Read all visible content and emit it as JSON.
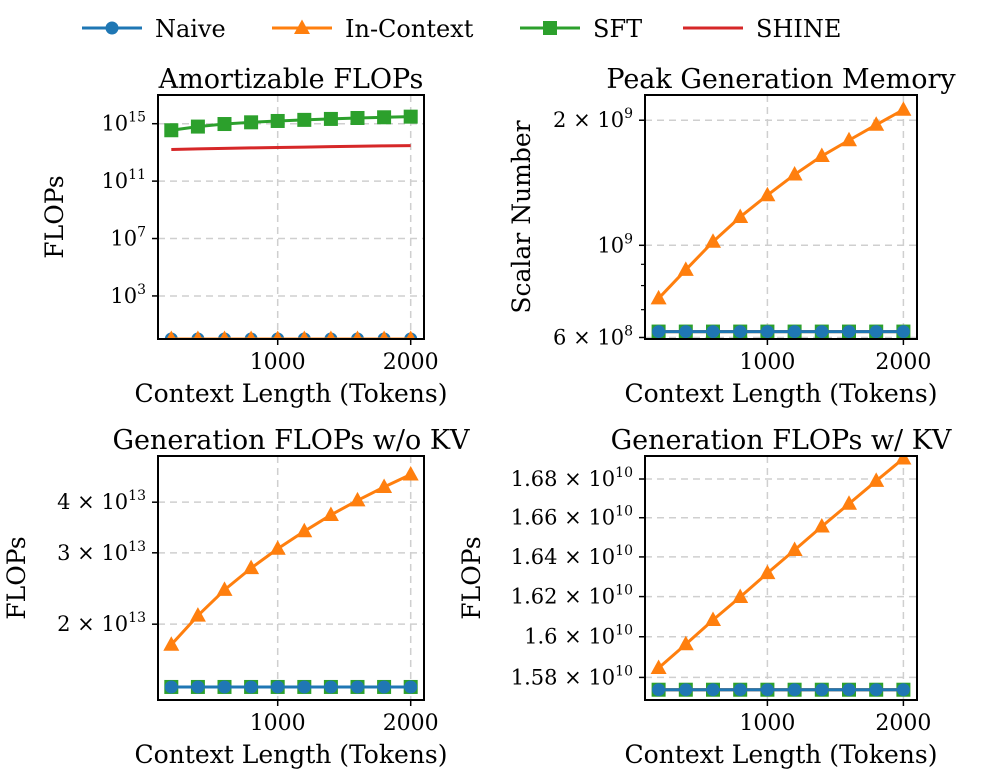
{
  "legend": {
    "position": "top-center",
    "entries": [
      {
        "name": "Naive",
        "color": "#1f77b4",
        "marker": "circle"
      },
      {
        "name": "In-Context",
        "color": "#ff7f0e",
        "marker": "triangle"
      },
      {
        "name": "SFT",
        "color": "#2ca02c",
        "marker": "square"
      },
      {
        "name": "SHINE",
        "color": "#d62728",
        "marker": "none"
      }
    ]
  },
  "chart_data": [
    {
      "type": "line",
      "title": "Amortizable FLOPs",
      "xlabel": "Context Length (Tokens)",
      "ylabel": "FLOPs",
      "yscale": "log",
      "grid": true,
      "xlim": [
        100,
        2100
      ],
      "ylim": [
        1,
        1e+17
      ],
      "x_ticks": [
        {
          "value": 1000,
          "label": "1000"
        },
        {
          "value": 2000,
          "label": "2000"
        }
      ],
      "y_ticks": [
        {
          "value": 1000.0,
          "base": "10",
          "exp": "3"
        },
        {
          "value": 10000000.0,
          "base": "10",
          "exp": "7"
        },
        {
          "value": 100000000000.0,
          "base": "10",
          "exp": "11"
        },
        {
          "value": 1000000000000000.0,
          "base": "10",
          "exp": "15"
        }
      ],
      "x": [
        200,
        400,
        600,
        800,
        1000,
        1200,
        1400,
        1600,
        1800,
        2000
      ],
      "series": [
        {
          "name": "Naive",
          "values": [
            1,
            1,
            1,
            1,
            1,
            1,
            1,
            1,
            1,
            1
          ]
        },
        {
          "name": "In-Context",
          "values": [
            1,
            1,
            1,
            1,
            1,
            1,
            1,
            1,
            1,
            1
          ]
        },
        {
          "name": "SFT",
          "values": [
            350000000000000.0,
            630000000000000.0,
            950000000000000.0,
            1250000000000000.0,
            1550000000000000.0,
            1850000000000000.0,
            2150000000000000.0,
            2500000000000000.0,
            2800000000000000.0,
            3100000000000000.0
          ]
        },
        {
          "name": "SHINE",
          "values": [
            16000000000000.0,
            17500000000000.0,
            19000000000000.0,
            20500000000000.0,
            22000000000000.0,
            23500000000000.0,
            25500000000000.0,
            27000000000000.0,
            28500000000000.0,
            30000000000000.0
          ]
        }
      ]
    },
    {
      "type": "line",
      "title": "Peak Generation Memory",
      "xlabel": "Context Length (Tokens)",
      "ylabel": "Scalar Number",
      "yscale": "log",
      "grid": true,
      "xlim": [
        100,
        2100
      ],
      "ylim": [
        595000000.0,
        2300000000.0
      ],
      "x_ticks": [
        {
          "value": 1000,
          "label": "1000"
        },
        {
          "value": 2000,
          "label": "2000"
        }
      ],
      "y_ticks": [
        {
          "value": 600000000.0,
          "mant": "6",
          "base": "10",
          "exp": "8"
        },
        {
          "value": 1000000000.0,
          "mant": "",
          "base": "10",
          "exp": "9"
        },
        {
          "value": 2000000000.0,
          "mant": "2",
          "base": "10",
          "exp": "9"
        }
      ],
      "y_minor_ticks": [
        700000000.0,
        800000000.0,
        900000000.0
      ],
      "x": [
        200,
        400,
        600,
        800,
        1000,
        1200,
        1400,
        1600,
        1800,
        2000
      ],
      "series": [
        {
          "name": "Naive",
          "values": [
            620000000.0,
            620000000.0,
            620000000.0,
            620000000.0,
            620000000.0,
            620000000.0,
            620000000.0,
            620000000.0,
            620000000.0,
            620000000.0
          ]
        },
        {
          "name": "In-Context",
          "values": [
            745000000.0,
            873000000.0,
            1020000000.0,
            1170000000.0,
            1320000000.0,
            1480000000.0,
            1640000000.0,
            1790000000.0,
            1950000000.0,
            2120000000.0
          ]
        },
        {
          "name": "SFT",
          "values": [
            620000000.0,
            620000000.0,
            620000000.0,
            620000000.0,
            620000000.0,
            620000000.0,
            620000000.0,
            620000000.0,
            620000000.0,
            620000000.0
          ]
        },
        {
          "name": "SHINE",
          "values": [
            620000000.0,
            620000000.0,
            620000000.0,
            620000000.0,
            620000000.0,
            620000000.0,
            620000000.0,
            620000000.0,
            620000000.0,
            620000000.0
          ]
        }
      ]
    },
    {
      "type": "line",
      "title": "Generation FLOPs w/o KV",
      "xlabel": "Context Length (Tokens)",
      "ylabel": "FLOPs",
      "yscale": "log",
      "grid": true,
      "xlim": [
        100,
        2100
      ],
      "ylim": [
        13000000000000.0,
        52000000000000.0
      ],
      "x_ticks": [
        {
          "value": 1000,
          "label": "1000"
        },
        {
          "value": 2000,
          "label": "2000"
        }
      ],
      "y_ticks": [
        {
          "value": 20000000000000.0,
          "mant": "2",
          "base": "10",
          "exp": "13"
        },
        {
          "value": 30000000000000.0,
          "mant": "3",
          "base": "10",
          "exp": "13"
        },
        {
          "value": 40000000000000.0,
          "mant": "4",
          "base": "10",
          "exp": "13"
        }
      ],
      "x": [
        200,
        400,
        600,
        800,
        1000,
        1200,
        1400,
        1600,
        1800,
        2000
      ],
      "series": [
        {
          "name": "Naive",
          "values": [
            14000000000000.0,
            14000000000000.0,
            14000000000000.0,
            14000000000000.0,
            14000000000000.0,
            14000000000000.0,
            14000000000000.0,
            14000000000000.0,
            14000000000000.0,
            14000000000000.0
          ]
        },
        {
          "name": "In-Context",
          "values": [
            17800000000000.0,
            21000000000000.0,
            24300000000000.0,
            27500000000000.0,
            30700000000000.0,
            33900000000000.0,
            37200000000000.0,
            40400000000000.0,
            43600000000000.0,
            46800000000000.0
          ]
        },
        {
          "name": "SFT",
          "values": [
            14000000000000.0,
            14000000000000.0,
            14000000000000.0,
            14000000000000.0,
            14000000000000.0,
            14000000000000.0,
            14000000000000.0,
            14000000000000.0,
            14000000000000.0,
            14000000000000.0
          ]
        },
        {
          "name": "SHINE",
          "values": [
            14000000000000.0,
            14000000000000.0,
            14000000000000.0,
            14000000000000.0,
            14000000000000.0,
            14000000000000.0,
            14000000000000.0,
            14000000000000.0,
            14000000000000.0,
            14000000000000.0
          ]
        }
      ]
    },
    {
      "type": "line",
      "title": "Generation FLOPs w/ KV",
      "xlabel": "Context Length (Tokens)",
      "ylabel": "FLOPs",
      "yscale": "log",
      "grid": true,
      "xlim": [
        100,
        2100
      ],
      "ylim": [
        15690000000.0,
        16920000000.0
      ],
      "x_ticks": [
        {
          "value": 1000,
          "label": "1000"
        },
        {
          "value": 2000,
          "label": "2000"
        }
      ],
      "y_ticks": [
        {
          "value": 15800000000.0,
          "mant": "1.58",
          "base": "10",
          "exp": "10"
        },
        {
          "value": 16000000000.0,
          "mant": "1.6",
          "base": "10",
          "exp": "10"
        },
        {
          "value": 16200000000.0,
          "mant": "1.62",
          "base": "10",
          "exp": "10"
        },
        {
          "value": 16400000000.0,
          "mant": "1.64",
          "base": "10",
          "exp": "10"
        },
        {
          "value": 16600000000.0,
          "mant": "1.66",
          "base": "10",
          "exp": "10"
        },
        {
          "value": 16800000000.0,
          "mant": "1.68",
          "base": "10",
          "exp": "10"
        }
      ],
      "x": [
        200,
        400,
        600,
        800,
        1000,
        1200,
        1400,
        1600,
        1800,
        2000
      ],
      "series": [
        {
          "name": "Naive",
          "values": [
            15740000000.0,
            15740000000.0,
            15740000000.0,
            15740000000.0,
            15740000000.0,
            15740000000.0,
            15740000000.0,
            15740000000.0,
            15740000000.0,
            15740000000.0
          ]
        },
        {
          "name": "In-Context",
          "values": [
            15846000000.0,
            15963000000.0,
            16083000000.0,
            16198000000.0,
            16318000000.0,
            16435000000.0,
            16555000000.0,
            16672000000.0,
            16790000000.0,
            16907000000.0
          ]
        },
        {
          "name": "SFT",
          "values": [
            15740000000.0,
            15740000000.0,
            15740000000.0,
            15740000000.0,
            15740000000.0,
            15740000000.0,
            15740000000.0,
            15740000000.0,
            15740000000.0,
            15740000000.0
          ]
        },
        {
          "name": "SHINE",
          "values": [
            15740000000.0,
            15740000000.0,
            15740000000.0,
            15740000000.0,
            15740000000.0,
            15740000000.0,
            15740000000.0,
            15740000000.0,
            15740000000.0,
            15740000000.0
          ]
        }
      ]
    }
  ]
}
